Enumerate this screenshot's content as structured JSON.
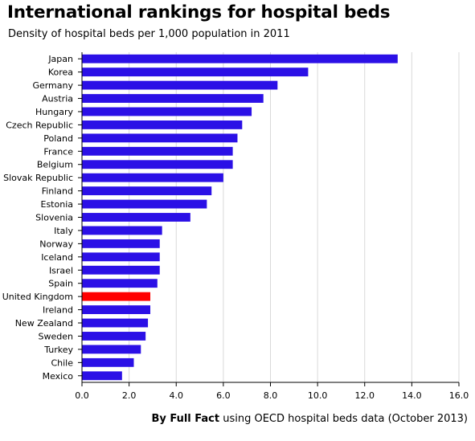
{
  "header": {
    "title": "International rankings for hospital beds",
    "subtitle": "Density of hospital beds per 1,000 population in 2011"
  },
  "footer": {
    "source_bold": "By Full Fact",
    "source_rest": " using OECD hospital beds data  (October 2013)"
  },
  "chart_data": {
    "type": "bar",
    "orientation": "horizontal",
    "title": "International rankings for hospital beds",
    "subtitle": "Density of hospital beds per 1,000 population in 2011",
    "xlabel": "",
    "ylabel": "",
    "xlim": [
      0,
      16
    ],
    "x_ticks": [
      "0.0",
      "2.0",
      "4.0",
      "6.0",
      "8.0",
      "10.0",
      "12.0",
      "14.0",
      "16.0"
    ],
    "grid": "vertical",
    "categories": [
      "Japan",
      "Korea",
      "Germany",
      "Austria",
      "Hungary",
      "Czech Republic",
      "Poland",
      "France",
      "Belgium",
      "Slovak Republic",
      "Finland",
      "Estonia",
      "Slovenia",
      "Italy",
      "Norway",
      "Iceland",
      "Israel",
      "Spain",
      "United Kingdom",
      "Ireland",
      "New Zealand",
      "Sweden",
      "Turkey",
      "Chile",
      "Mexico"
    ],
    "values": [
      13.4,
      9.6,
      8.3,
      7.7,
      7.2,
      6.8,
      6.6,
      6.4,
      6.4,
      6.0,
      5.5,
      5.3,
      4.6,
      3.4,
      3.3,
      3.3,
      3.3,
      3.2,
      2.9,
      2.9,
      2.8,
      2.7,
      2.5,
      2.2,
      1.7
    ],
    "bar_color": "#2b10e6",
    "highlight": {
      "category": "United Kingdom",
      "color": "#ff0000"
    },
    "axis_color": "#000000",
    "grid_color": "#d9d9d9"
  }
}
